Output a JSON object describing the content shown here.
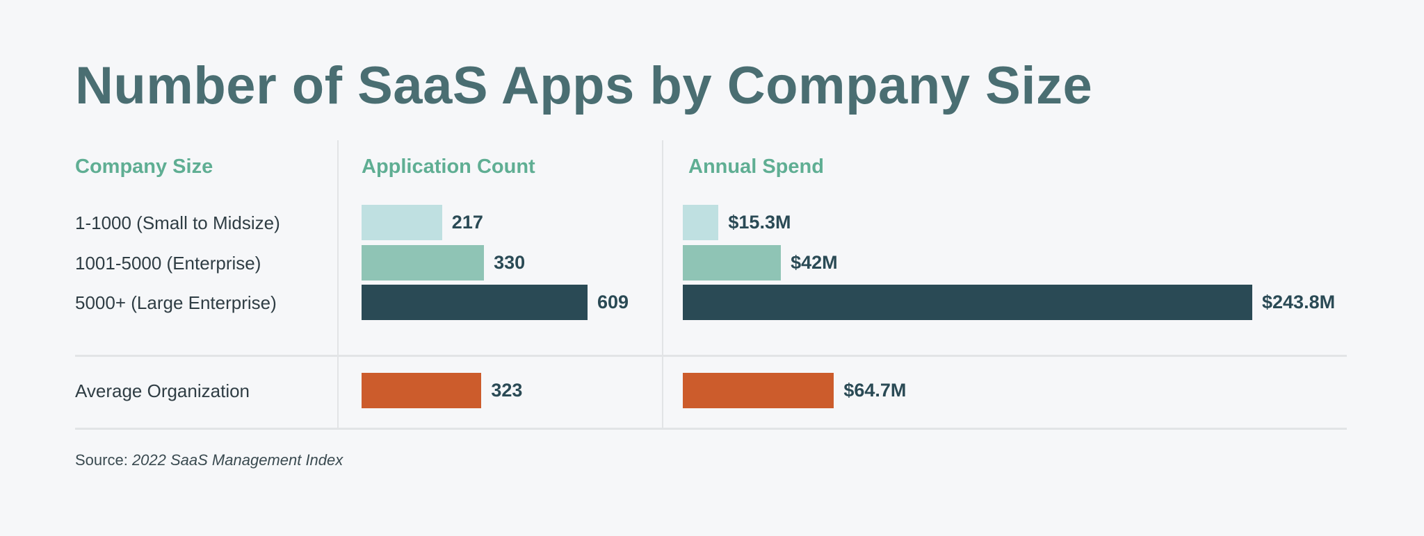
{
  "chart_data": {
    "type": "bar",
    "orientation": "horizontal",
    "title": "Number of SaaS Apps by Company Size",
    "row_header": "Company Size",
    "categories": [
      "1-1000 (Small to Midsize)",
      "1001-5000 (Enterprise)",
      "5000+ (Large Enterprise)",
      "Average Organization"
    ],
    "panels": [
      {
        "header": "Application Count",
        "values": [
          217,
          330,
          609,
          323
        ],
        "labels": [
          "217",
          "330",
          "609",
          "323"
        ]
      },
      {
        "header": "Annual Spend",
        "values": [
          15.3,
          42,
          243.8,
          64.7
        ],
        "labels": [
          "$15.3M",
          "$42M",
          "$243.8M",
          "$64.7M"
        ]
      }
    ],
    "colors": [
      "#bfe0e1",
      "#8fc4b5",
      "#2a4a55",
      "#cc5c2c"
    ],
    "grid": false,
    "legend": "none"
  },
  "source": {
    "prefix": "Source: ",
    "name": "2022 SaaS Management Index"
  }
}
